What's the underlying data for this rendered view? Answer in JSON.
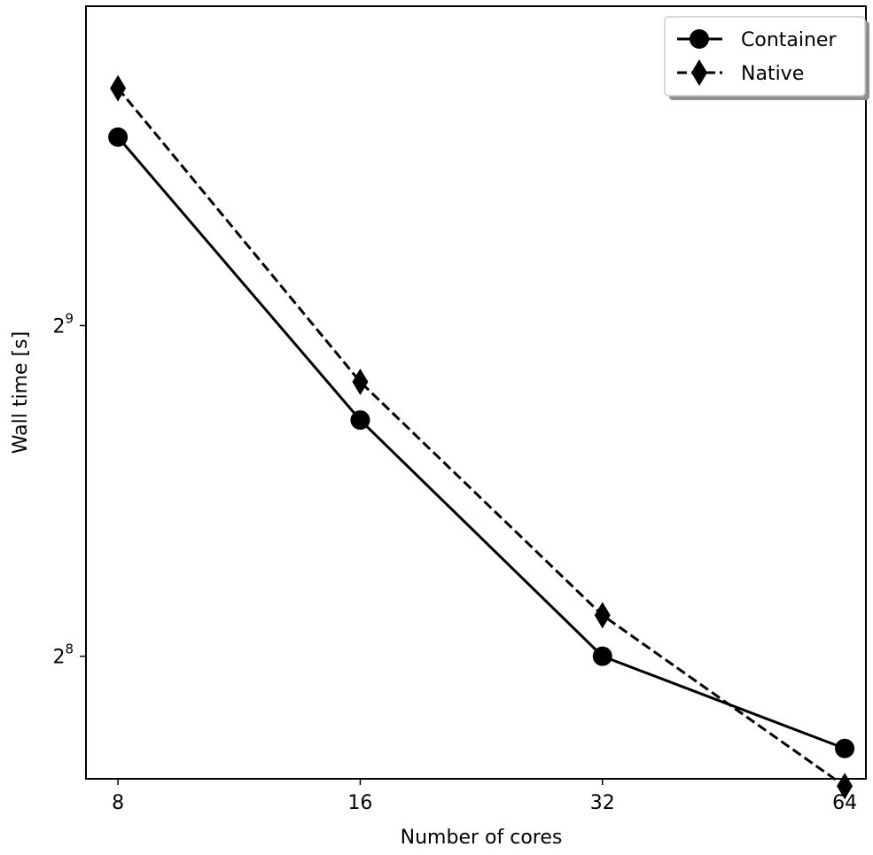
{
  "chart_data": {
    "type": "line",
    "title": "",
    "xlabel": "Number of cores",
    "ylabel": "Wall time [s]",
    "x_scale": "log2",
    "y_scale": "log2",
    "x": [
      8,
      16,
      32,
      64
    ],
    "x_tick_labels": [
      "8",
      "16",
      "32",
      "64"
    ],
    "y_ticks": [
      {
        "value": 256,
        "base": "2",
        "exponent": "8"
      },
      {
        "value": 512,
        "base": "2",
        "exponent": "9"
      }
    ],
    "xlim": [
      7.3,
      68
    ],
    "ylim": [
      198,
      1000
    ],
    "grid": false,
    "legend_position": "top-right",
    "series": [
      {
        "name": "Container",
        "marker": "circle",
        "linestyle": "solid",
        "color": "#000000",
        "values": [
          760,
          420,
          256,
          211
        ]
      },
      {
        "name": "Native",
        "marker": "diamond",
        "linestyle": "dashed",
        "color": "#000000",
        "values": [
          842,
          455,
          279,
          195
        ]
      }
    ]
  }
}
